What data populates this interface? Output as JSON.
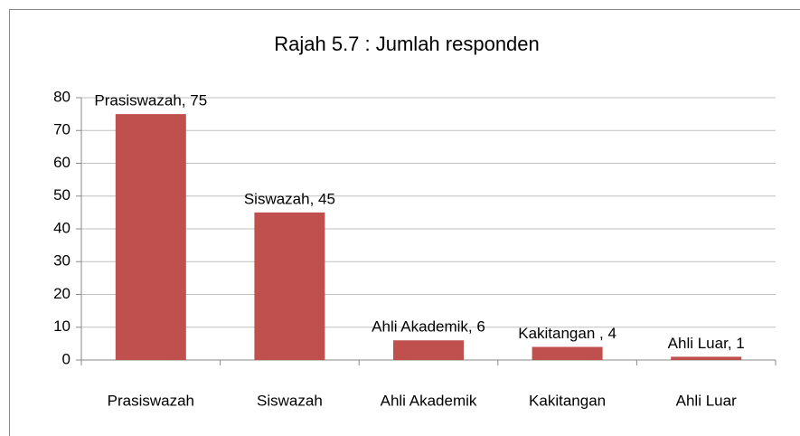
{
  "chart_data": {
    "type": "bar",
    "title": "Rajah 5.7 : Jumlah responden",
    "categories": [
      "Prasiswazah",
      "Siswazah",
      "Ahli Akademik",
      "Kakitangan",
      "Ahli Luar"
    ],
    "values": [
      75,
      45,
      6,
      4,
      1
    ],
    "value_labels": [
      "Prasiswazah, 75",
      "Siswazah, 45",
      "Ahli Akademik, 6",
      "Kakitangan , 4",
      "Ahli Luar, 1"
    ],
    "color": "#c0504d",
    "ylim": [
      0,
      80
    ],
    "yticks": [
      0,
      10,
      20,
      30,
      40,
      50,
      60,
      70,
      80
    ],
    "grid": true
  }
}
